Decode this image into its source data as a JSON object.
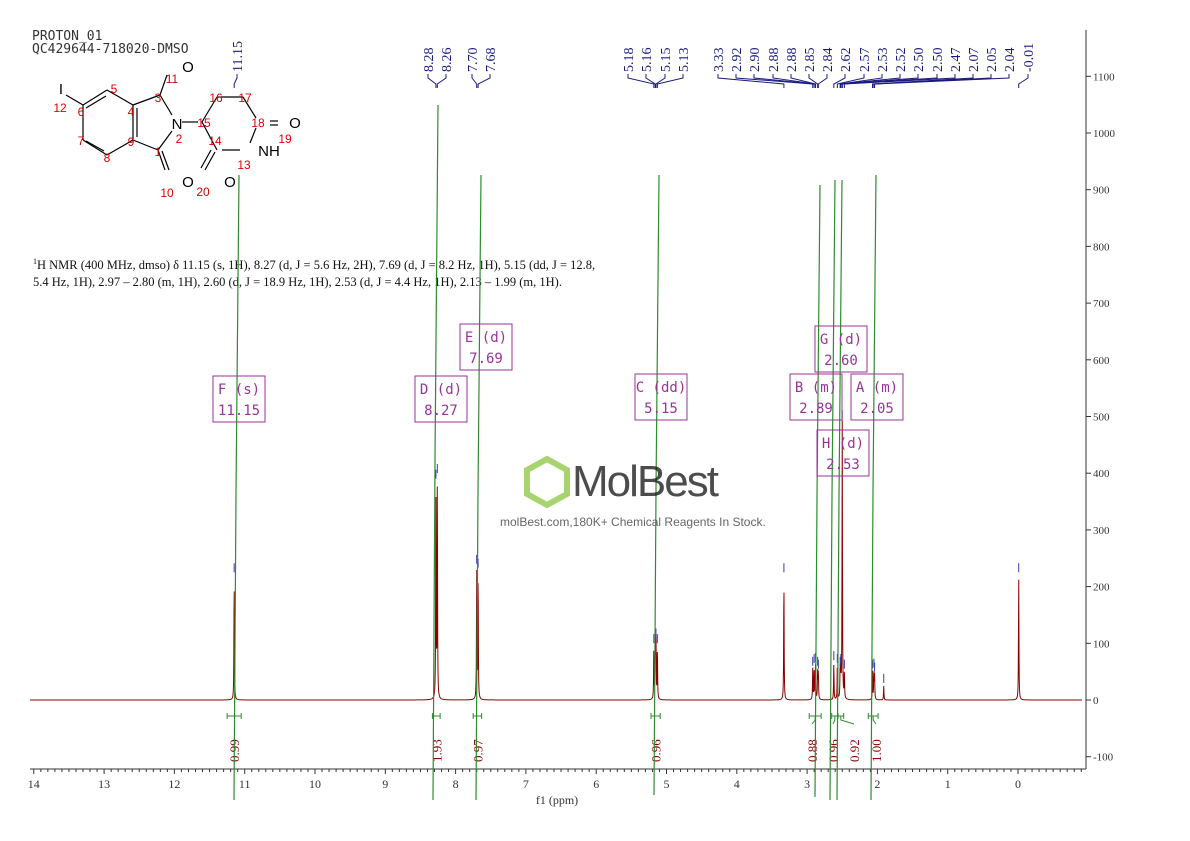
{
  "header": {
    "line1": "PROTON_01",
    "line2": "QC429644-718020-DMSO"
  },
  "description": {
    "nucleus_sup": "1",
    "text": "H NMR (400 MHz, dmso) δ 11.15 (s, 1H), 8.27 (d, J = 5.6 Hz, 2H), 7.69 (d, J = 8.2 Hz, 1H), 5.15 (dd, J = 12.8, 5.4 Hz, 1H), 2.97 – 2.80 (m, 1H), 2.60 (d, J = 18.9 Hz, 1H), 2.53 (d, J = 4.4 Hz, 1H), 2.13 – 1.99 (m, 1H)."
  },
  "structure": {
    "atoms": [
      "I",
      "O",
      "N",
      "O",
      "O",
      "NH",
      "O"
    ],
    "numbers": [
      "1",
      "2",
      "3",
      "4",
      "5",
      "6",
      "7",
      "8",
      "9",
      "10",
      "11",
      "12",
      "13",
      "14",
      "15",
      "16",
      "17",
      "18",
      "19",
      "20"
    ]
  },
  "watermark": {
    "brand": "MolBest",
    "tagline": "molBest.com,180K+ Chemical Reagents In Stock."
  },
  "chart_data": {
    "type": "line",
    "xlabel": "f1 (ppm)",
    "xlim": [
      14,
      -0.9
    ],
    "ylim": [
      -120,
      1180
    ],
    "x_ticks": [
      "14",
      "13",
      "12",
      "11",
      "10",
      "9",
      "8",
      "7",
      "6",
      "5",
      "4",
      "3",
      "2",
      "1",
      "0"
    ],
    "y_ticks": [
      "-100",
      "0",
      "100",
      "200",
      "300",
      "400",
      "500",
      "600",
      "700",
      "800",
      "900",
      "1000",
      "1100"
    ],
    "colors": {
      "spectrum": "#8b0000",
      "integral": "#2e8b2e",
      "labels": "#1a1a80",
      "multiplet": "#993399"
    },
    "peaks": [
      {
        "ppm": 11.15,
        "height": 220
      },
      {
        "ppm": 8.28,
        "height": 385
      },
      {
        "ppm": 8.26,
        "height": 395
      },
      {
        "ppm": 7.7,
        "height": 235
      },
      {
        "ppm": 7.68,
        "height": 228
      },
      {
        "ppm": 5.18,
        "height": 95
      },
      {
        "ppm": 5.16,
        "height": 105
      },
      {
        "ppm": 5.15,
        "height": 105
      },
      {
        "ppm": 5.13,
        "height": 95
      },
      {
        "ppm": 3.33,
        "height": 220
      },
      {
        "ppm": 2.92,
        "height": 55
      },
      {
        "ppm": 2.9,
        "height": 60
      },
      {
        "ppm": 2.88,
        "height": 62
      },
      {
        "ppm": 2.85,
        "height": 55
      },
      {
        "ppm": 2.84,
        "height": 50
      },
      {
        "ppm": 2.62,
        "height": 65
      },
      {
        "ppm": 2.57,
        "height": 60
      },
      {
        "ppm": 2.53,
        "height": 55
      },
      {
        "ppm": 2.52,
        "height": 60
      },
      {
        "ppm": 2.5,
        "height": 490
      },
      {
        "ppm": 2.47,
        "height": 50
      },
      {
        "ppm": 2.07,
        "height": 50
      },
      {
        "ppm": 2.05,
        "height": 52
      },
      {
        "ppm": 2.04,
        "height": 45
      },
      {
        "ppm": 1.91,
        "height": 25
      },
      {
        "ppm": -0.01,
        "height": 220
      }
    ],
    "peak_labels": [
      "11.15",
      "8.28",
      "8.26",
      "7.70",
      "7.68",
      "5.18",
      "5.16",
      "5.15",
      "5.13",
      "3.33",
      "2.92",
      "2.90",
      "2.88",
      "2.88",
      "2.85",
      "2.84",
      "2.62",
      "2.57",
      "2.53",
      "2.52",
      "2.50",
      "2.50",
      "2.47",
      "2.07",
      "2.05",
      "2.04",
      "-0.01"
    ],
    "integrals": [
      {
        "from": 11.25,
        "to": 11.05,
        "value": "0.99"
      },
      {
        "from": 8.33,
        "to": 8.22,
        "value": "1.93"
      },
      {
        "from": 7.75,
        "to": 7.63,
        "value": "0.97"
      },
      {
        "from": 5.22,
        "to": 5.09,
        "value": "0.96"
      },
      {
        "from": 2.97,
        "to": 2.8,
        "value": "0.88"
      },
      {
        "from": 2.65,
        "to": 2.56,
        "value": "0.96"
      },
      {
        "from": 2.56,
        "to": 2.48,
        "value": "0.92"
      },
      {
        "from": 2.13,
        "to": 1.99,
        "value": "1.00"
      }
    ],
    "multiplets": [
      {
        "label": "F (s)",
        "shift": "11.15"
      },
      {
        "label": "D (d)",
        "shift": "8.27"
      },
      {
        "label": "E (d)",
        "shift": "7.69"
      },
      {
        "label": "C (dd)",
        "shift": "5.15"
      },
      {
        "label": "B (m)",
        "shift": "2.89"
      },
      {
        "label": "G (d)",
        "shift": "2.60"
      },
      {
        "label": "A (m)",
        "shift": "2.05"
      },
      {
        "label": "H (d)",
        "shift": "2.53"
      }
    ]
  }
}
